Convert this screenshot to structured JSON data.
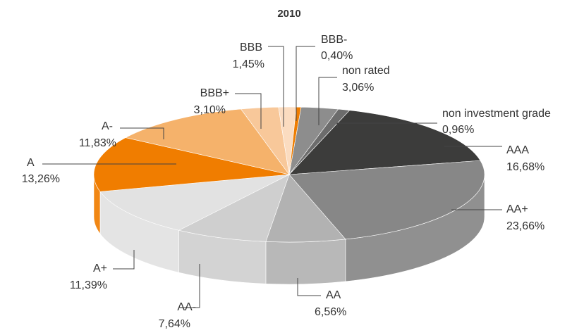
{
  "chart_data": {
    "type": "pie3d",
    "title": "2010",
    "categories": [
      "AAA",
      "AA+",
      "AA",
      "AA-",
      "A+",
      "A",
      "A-",
      "BBB+",
      "BBB",
      "BBB-",
      "non rated",
      "non investment grade"
    ],
    "values": [
      16.68,
      23.66,
      6.56,
      7.64,
      11.39,
      13.26,
      11.83,
      3.1,
      1.45,
      0.4,
      3.06,
      0.96
    ],
    "value_labels": [
      "16,68%",
      "23,66%",
      "6,56%",
      "7,64%",
      "11,39%",
      "13,26%",
      "11,83%",
      "3,10%",
      "1,45%",
      "0,40%",
      "3,06%",
      "0,96%"
    ],
    "colors": [
      "#3c3c3b",
      "#878787",
      "#b2b2b2",
      "#cfcfcf",
      "#e2e2e2",
      "#f07d00",
      "#f5b26b",
      "#f8c89a",
      "#fbdcc0",
      "#ef7d00",
      "#8d8d8d",
      "#6c6c6c"
    ]
  }
}
